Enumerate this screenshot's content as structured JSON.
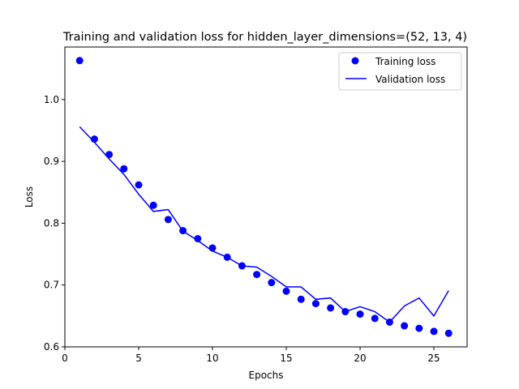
{
  "chart_data": {
    "type": "line",
    "title": "Training and validation loss for hidden_layer_dimensions=(52, 13, 4)",
    "xlabel": "Epochs",
    "ylabel": "Loss",
    "xlim": [
      0.0,
      27.25
    ],
    "ylim": [
      0.6,
      1.085
    ],
    "xticks": [
      0,
      5,
      10,
      15,
      20,
      25
    ],
    "yticks": [
      0.6,
      0.7,
      0.8,
      0.9,
      1.0
    ],
    "ytick_labels": [
      "0.6",
      "0.7",
      "0.8",
      "0.9",
      "1.0"
    ],
    "grid": false,
    "legend_position": "top-right",
    "series": [
      {
        "name": "Training loss",
        "style": "markers",
        "color": "#0000ff",
        "x": [
          1,
          2,
          3,
          4,
          5,
          6,
          7,
          8,
          9,
          10,
          11,
          12,
          13,
          14,
          15,
          16,
          17,
          18,
          19,
          20,
          21,
          22,
          23,
          24,
          25,
          26
        ],
        "values": [
          1.063,
          0.936,
          0.911,
          0.888,
          0.862,
          0.829,
          0.806,
          0.788,
          0.775,
          0.76,
          0.745,
          0.731,
          0.717,
          0.704,
          0.69,
          0.677,
          0.67,
          0.663,
          0.657,
          0.653,
          0.646,
          0.64,
          0.634,
          0.63,
          0.625,
          0.622
        ]
      },
      {
        "name": "Validation loss",
        "style": "line",
        "color": "#0000ff",
        "x": [
          1,
          2,
          3,
          4,
          5,
          6,
          7,
          8,
          9,
          10,
          11,
          12,
          13,
          14,
          15,
          16,
          17,
          18,
          19,
          20,
          21,
          22,
          23,
          24,
          25,
          26
        ],
        "values": [
          0.956,
          0.931,
          0.904,
          0.879,
          0.847,
          0.819,
          0.822,
          0.787,
          0.772,
          0.755,
          0.745,
          0.731,
          0.729,
          0.714,
          0.697,
          0.697,
          0.677,
          0.679,
          0.657,
          0.665,
          0.657,
          0.64,
          0.666,
          0.679,
          0.65,
          0.691
        ]
      }
    ]
  }
}
